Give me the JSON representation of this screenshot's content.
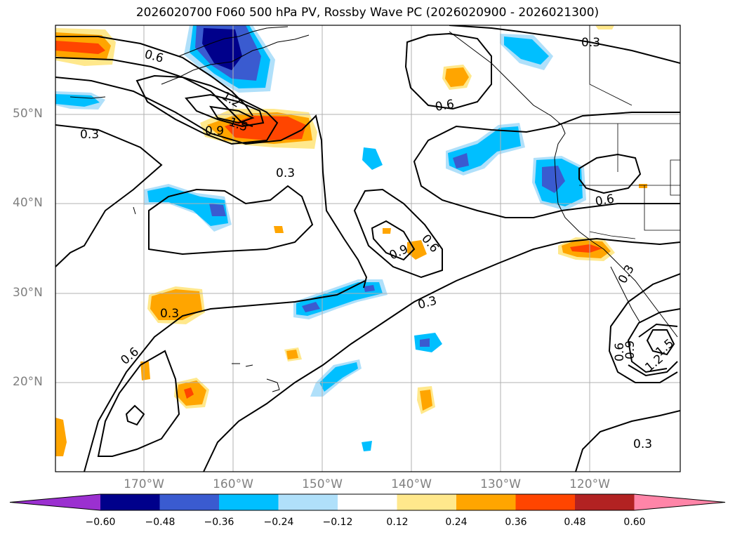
{
  "title": "2026020700 F060 500 hPa PV, Rossby Wave PC (2026020900 - 2026021300)",
  "map": {
    "region": "North Pacific / Western North America",
    "lat_labels": [
      "50°N",
      "40°N",
      "30°N",
      "20°N"
    ],
    "lon_labels": [
      "170°W",
      "160°W",
      "150°W",
      "140°W",
      "130°W",
      "120°W"
    ],
    "contour_labels": [
      "0.6",
      "1.2",
      "1.5",
      "0.9",
      "0.3",
      "0.3",
      "0.6",
      "0.6",
      "0.3",
      "0.9",
      "0.6",
      "0.3",
      "0.3",
      "0.6",
      "0.6",
      "0.9",
      "1.2",
      "1.5",
      "0.3",
      "0.3"
    ]
  },
  "colorbar": {
    "ticks": [
      "−0.60",
      "−0.48",
      "−0.36",
      "−0.24",
      "−0.12",
      "0.12",
      "0.24",
      "0.36",
      "0.48",
      "0.60"
    ],
    "colors": [
      "#9b30d0",
      "#00008b",
      "#3a5bd0",
      "#00bfff",
      "#b0e0fa",
      "#ffffff",
      "#ffe88c",
      "#ffa500",
      "#ff4500",
      "#b22222",
      "#ff85a8"
    ]
  }
}
